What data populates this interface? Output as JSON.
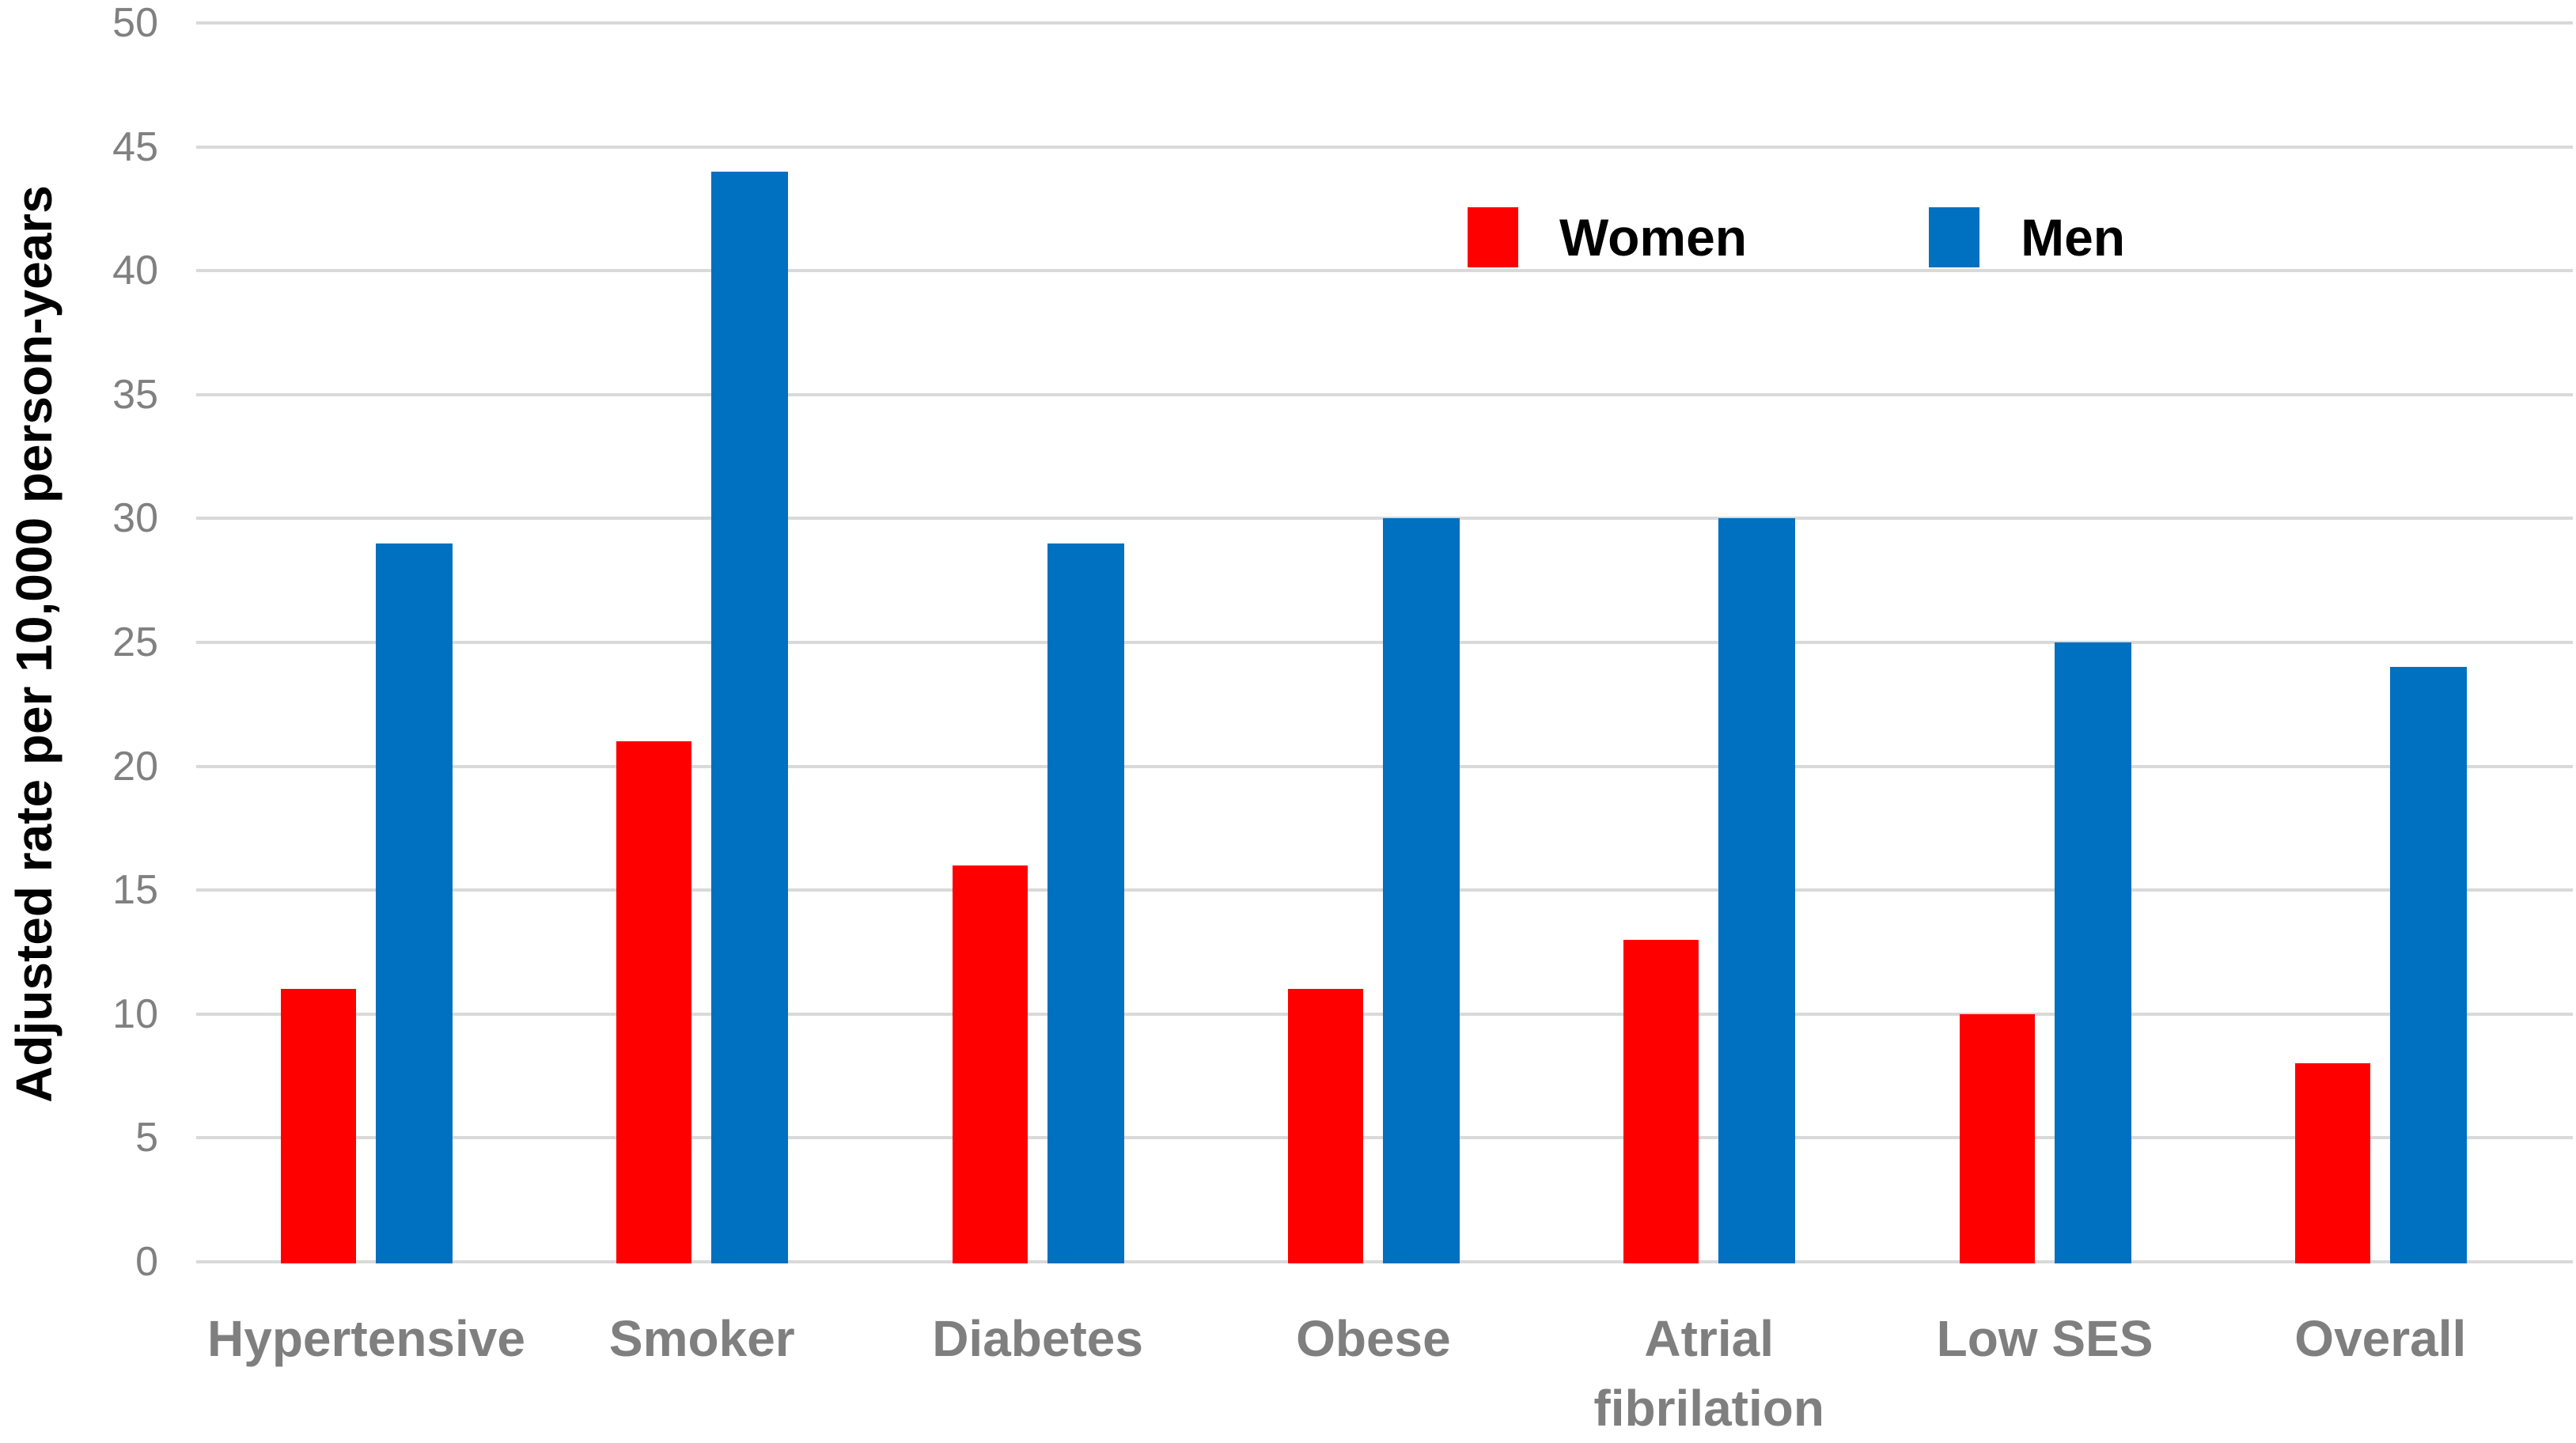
{
  "chart_data": {
    "type": "bar",
    "title": "",
    "ylabel": "Adjusted rate per 10,000 person-years",
    "xlabel": "",
    "ylim": [
      0,
      50
    ],
    "ytick_step": 5,
    "grid": true,
    "legend_position": "top-center",
    "categories": [
      "Hypertensive",
      "Smoker",
      "Diabetes",
      "Obese",
      "Atrial fibrilation",
      "Low SES",
      "Overall"
    ],
    "series": [
      {
        "name": "Women",
        "color": "#FF0000",
        "values": [
          11,
          21,
          16,
          11,
          13,
          10,
          8
        ]
      },
      {
        "name": "Men",
        "color": "#0070C0",
        "values": [
          29,
          44,
          29,
          30,
          30,
          25,
          24
        ]
      }
    ],
    "colors": {
      "gridline": "#D9D9D9",
      "tick_label": "#808080",
      "category_label": "#7F7F7F",
      "axis_title": "#000000",
      "background": "#FFFFFF"
    }
  }
}
